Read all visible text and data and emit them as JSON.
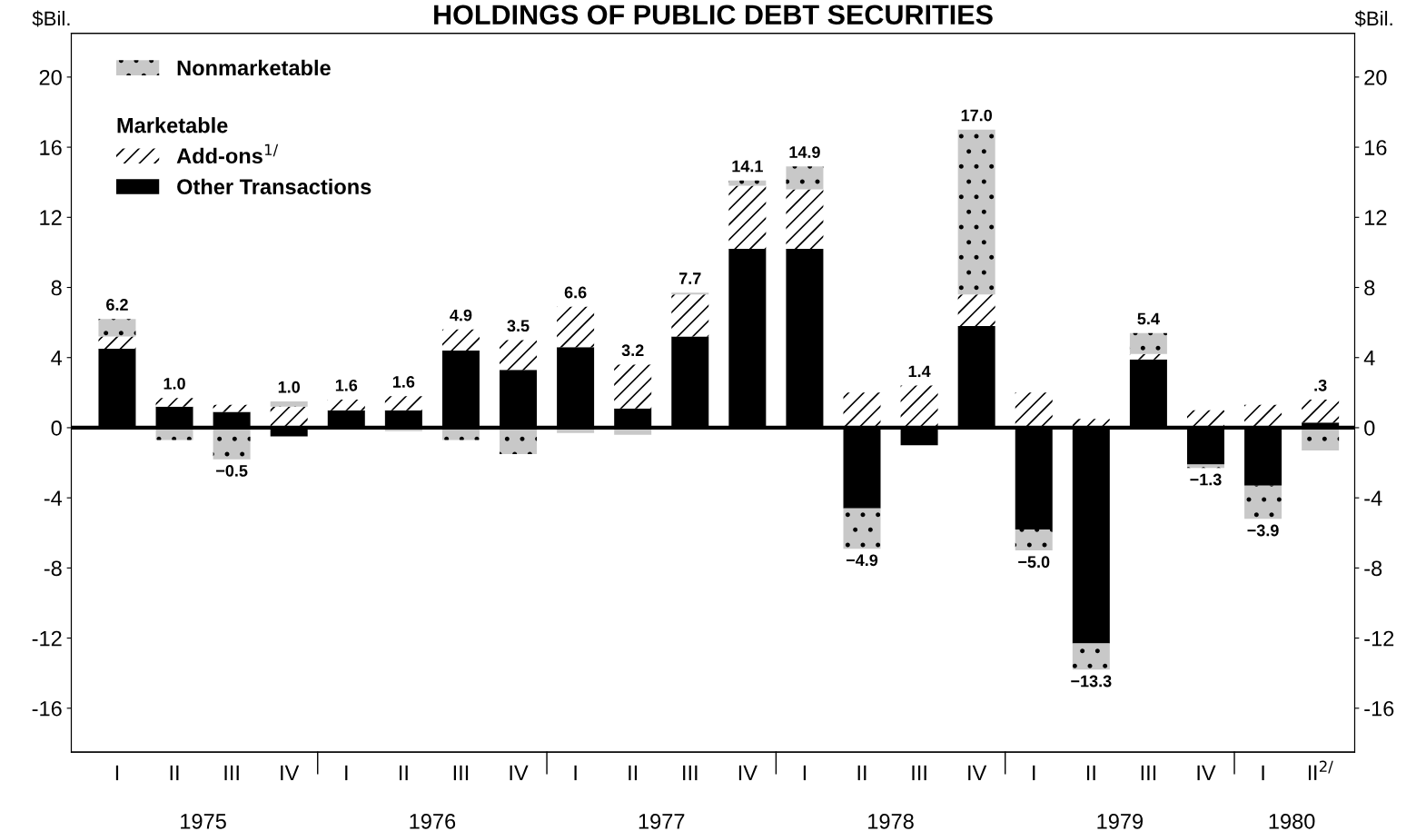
{
  "chart_data": {
    "type": "bar",
    "stacked": true,
    "title": "HOLDINGS OF PUBLIC DEBT SECURITIES",
    "ylabel": "$Bil.",
    "y2label": "$Bil.",
    "categories": [
      "I",
      "II",
      "III",
      "IV",
      "I",
      "II",
      "III",
      "IV",
      "I",
      "II",
      "III",
      "IV",
      "I",
      "II",
      "III",
      "IV",
      "I",
      "II",
      "III",
      "IV",
      "I",
      "II$^{2/}$"
    ],
    "series": [
      {
        "name": "Other Transactions",
        "color": "#000000",
        "values": [
          4.5,
          1.2,
          0.9,
          -0.5,
          1.0,
          1.0,
          4.4,
          3.3,
          4.6,
          1.1,
          5.2,
          10.2,
          10.2,
          -4.6,
          -1.0,
          5.8,
          -5.8,
          -12.3,
          3.9,
          -2.1,
          -3.3,
          0.3
        ]
      },
      {
        "name": "Add-ons$^{1/}$",
        "color": "#ffffff",
        "values": [
          0.7,
          0.5,
          0.4,
          1.2,
          0.6,
          0.8,
          1.2,
          1.7,
          2.3,
          2.5,
          2.4,
          3.6,
          3.4,
          2.0,
          2.4,
          1.8,
          2.0,
          0.5,
          0.3,
          1.0,
          1.3,
          1.3
        ]
      },
      {
        "name": "Nonmarketable",
        "color": "#c8c8c8",
        "values": [
          1.0,
          -0.7,
          -1.8,
          0.3,
          0.0,
          -0.2,
          -0.7,
          -1.5,
          -0.3,
          -0.4,
          0.1,
          0.3,
          1.3,
          -2.3,
          0.0,
          9.4,
          -1.2,
          -1.5,
          1.2,
          -0.2,
          -1.9,
          -1.3
        ]
      }
    ],
    "legend_title": "Marketable",
    "totals": [
      "6.2",
      "1.0",
      "−0.5",
      "1.0",
      "1.6",
      "1.6",
      "4.9",
      "3.5",
      "6.6",
      "3.2",
      "7.7",
      "14.1",
      "14.9",
      "−4.9",
      "1.4",
      "17.0",
      "−5.0",
      "−13.3",
      "5.4",
      "−1.3",
      "−3.9",
      ".3"
    ],
    "ylim": [
      -18.5,
      22.5
    ],
    "yticks": [
      {
        "value": 20,
        "label": "20"
      },
      {
        "value": 16,
        "label": "16"
      },
      {
        "value": 12,
        "label": "12"
      },
      {
        "value": 8,
        "label": "8"
      },
      {
        "value": 4,
        "label": "4"
      },
      {
        "value": 0,
        "label": "0"
      },
      {
        "value": -4,
        "label": "-4"
      },
      {
        "value": -8,
        "label": "-8"
      },
      {
        "value": -12,
        "label": "-12"
      },
      {
        "value": -16,
        "label": "-16"
      }
    ],
    "y2lim": [
      -18.5,
      22.5
    ],
    "y2ticks": [
      {
        "value": 20,
        "label": "20"
      },
      {
        "value": 16,
        "label": "16"
      },
      {
        "value": 12,
        "label": "12"
      },
      {
        "value": 8,
        "label": "8"
      },
      {
        "value": 4,
        "label": "4"
      },
      {
        "value": 0,
        "label": "0"
      },
      {
        "value": -4,
        "label": "-4"
      },
      {
        "value": -8,
        "label": "-8"
      },
      {
        "value": -12,
        "label": "-12"
      },
      {
        "value": -16,
        "label": "-16"
      }
    ],
    "annotations": [
      "1975",
      "1976",
      "1977",
      "1978",
      "1979",
      "1980"
    ],
    "ref_lines": [
      {
        "axis": "y",
        "value": 0,
        "color": "#000000"
      }
    ],
    "legend": "top left",
    "grid": false
  }
}
